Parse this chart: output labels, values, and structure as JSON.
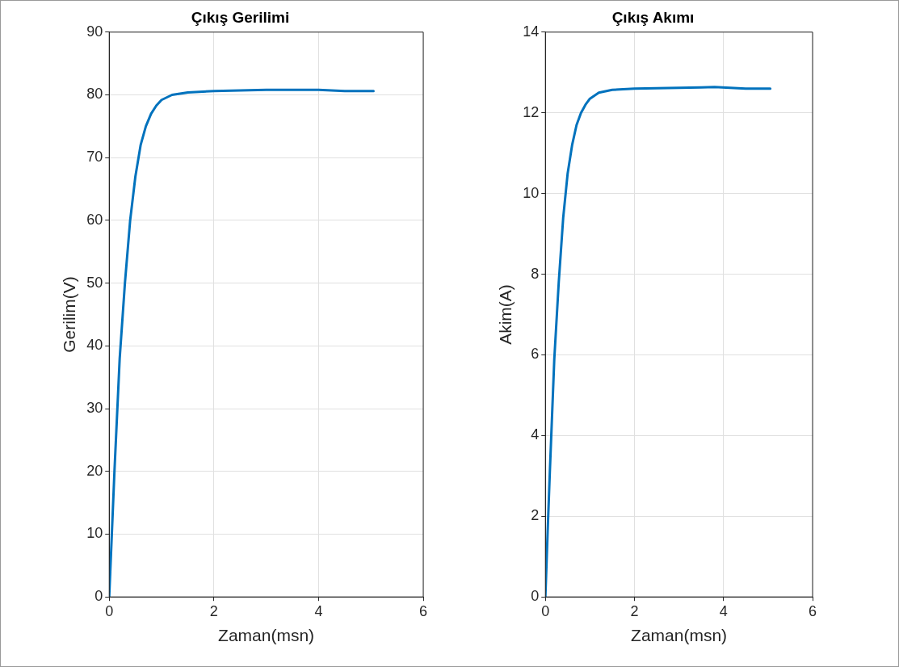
{
  "chart_data": [
    {
      "type": "line",
      "title": "Çıkış Gerilimi",
      "xlabel": "Zaman(msn)",
      "ylabel": "Gerilim(V)",
      "xlim": [
        0,
        6
      ],
      "xticks": [
        0,
        2,
        4,
        6
      ],
      "ylim": [
        0,
        90
      ],
      "yticks": [
        0,
        10,
        20,
        30,
        40,
        50,
        60,
        70,
        80,
        90
      ],
      "grid": true,
      "legend": false,
      "marker": "none",
      "line_style": "solid",
      "series": [
        {
          "color": "#0072bd",
          "x": [
            0,
            0.05,
            0.1,
            0.2,
            0.3,
            0.4,
            0.5,
            0.6,
            0.7,
            0.8,
            0.9,
            1.0,
            1.2,
            1.5,
            2,
            2.5,
            3,
            3.5,
            4,
            4.5,
            5.05
          ],
          "values": [
            0,
            10,
            20,
            38,
            50,
            60,
            67,
            72,
            75,
            77,
            78.3,
            79.2,
            80,
            80.4,
            80.6,
            80.7,
            80.8,
            80.8,
            80.8,
            80.6,
            80.6
          ]
        }
      ]
    },
    {
      "type": "line",
      "title": "Çıkış Akımı",
      "xlabel": "Zaman(msn)",
      "ylabel": "Akim(A)",
      "xlim": [
        0,
        6
      ],
      "xticks": [
        0,
        2,
        4,
        6
      ],
      "ylim": [
        0,
        14
      ],
      "yticks": [
        0,
        2,
        4,
        6,
        8,
        10,
        12,
        14
      ],
      "grid": true,
      "legend": false,
      "marker": "none",
      "line_style": "solid",
      "series": [
        {
          "color": "#0072bd",
          "x": [
            0,
            0.05,
            0.1,
            0.2,
            0.3,
            0.4,
            0.5,
            0.6,
            0.7,
            0.8,
            0.9,
            1.0,
            1.2,
            1.5,
            2,
            2.5,
            3,
            3.5,
            3.8,
            4.5,
            5.05
          ],
          "values": [
            0,
            1.6,
            3.1,
            5.9,
            7.8,
            9.4,
            10.5,
            11.2,
            11.7,
            12.0,
            12.2,
            12.35,
            12.5,
            12.57,
            12.6,
            12.61,
            12.62,
            12.63,
            12.64,
            12.6,
            12.6
          ]
        }
      ]
    }
  ]
}
